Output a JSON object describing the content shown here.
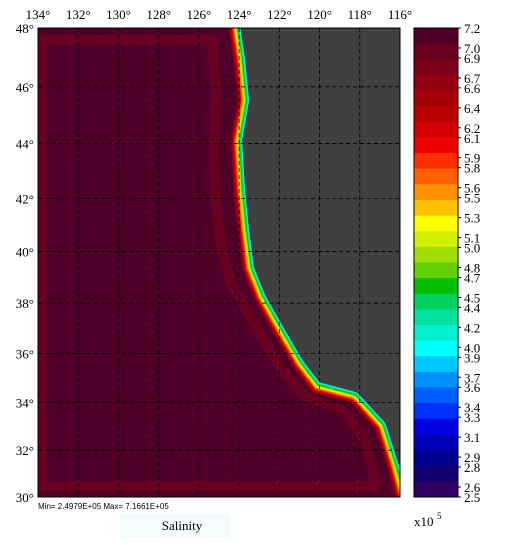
{
  "map": {
    "longitude_ticks": [
      {
        "value": 134,
        "label": "134°"
      },
      {
        "value": 132,
        "label": "132°"
      },
      {
        "value": 130,
        "label": "130°"
      },
      {
        "value": 128,
        "label": "128°"
      },
      {
        "value": 126,
        "label": "126°"
      },
      {
        "value": 124,
        "label": "124°"
      },
      {
        "value": 122,
        "label": "122°"
      },
      {
        "value": 120,
        "label": "120°"
      },
      {
        "value": 118,
        "label": "118°"
      },
      {
        "value": 116,
        "label": "116°"
      }
    ],
    "latitude_ticks": [
      {
        "value": 48,
        "label": "48°"
      },
      {
        "value": 46,
        "label": "46°"
      },
      {
        "value": 44,
        "label": "44°"
      },
      {
        "value": 42,
        "label": "42°"
      },
      {
        "value": 40,
        "label": "40°"
      },
      {
        "value": 38,
        "label": "38°"
      },
      {
        "value": 36,
        "label": "36°"
      },
      {
        "value": 34,
        "label": "34°"
      },
      {
        "value": 32,
        "label": "32°"
      },
      {
        "value": 30,
        "label": "30°"
      }
    ],
    "range_note": "Min= 2.4979E+05   Max= 7.1661E+05",
    "variable": "Salinity"
  },
  "colorbar": {
    "levels": [
      7.2,
      {
        "value": 7,
        "label": "7.0"
      },
      6.9,
      6.7,
      6.6,
      6.4,
      6.2,
      6.1,
      5.9,
      5.8,
      5.6,
      5.5,
      5.3,
      5.1,
      {
        "value": 5,
        "label": "5.0"
      },
      4.8,
      4.7,
      4.5,
      4.4,
      4.2,
      {
        "value": 4,
        "label": "4.0"
      },
      3.9,
      3.7,
      3.6,
      3.4,
      3.3,
      3.1,
      2.9,
      2.8,
      2.6,
      2.5
    ],
    "colors": [
      "#500028",
      "#680020",
      "#7c0018",
      "#900010",
      "#a40008",
      "#b80000",
      "#d00000",
      "#ec0000",
      "#ff3000",
      "#ff6000",
      "#ff9000",
      "#ffc000",
      "#ffff00",
      "#d0f000",
      "#a0e000",
      "#60d000",
      "#00c000",
      "#00d060",
      "#00e0a0",
      "#00f0d0",
      "#00ffff",
      "#00c8ff",
      "#0090ff",
      "#0060ff",
      "#0030ff",
      "#0000e0",
      "#0000b8",
      "#000090",
      "#100070",
      "#300060"
    ],
    "multiplier": "x10",
    "exponent": "5"
  }
}
